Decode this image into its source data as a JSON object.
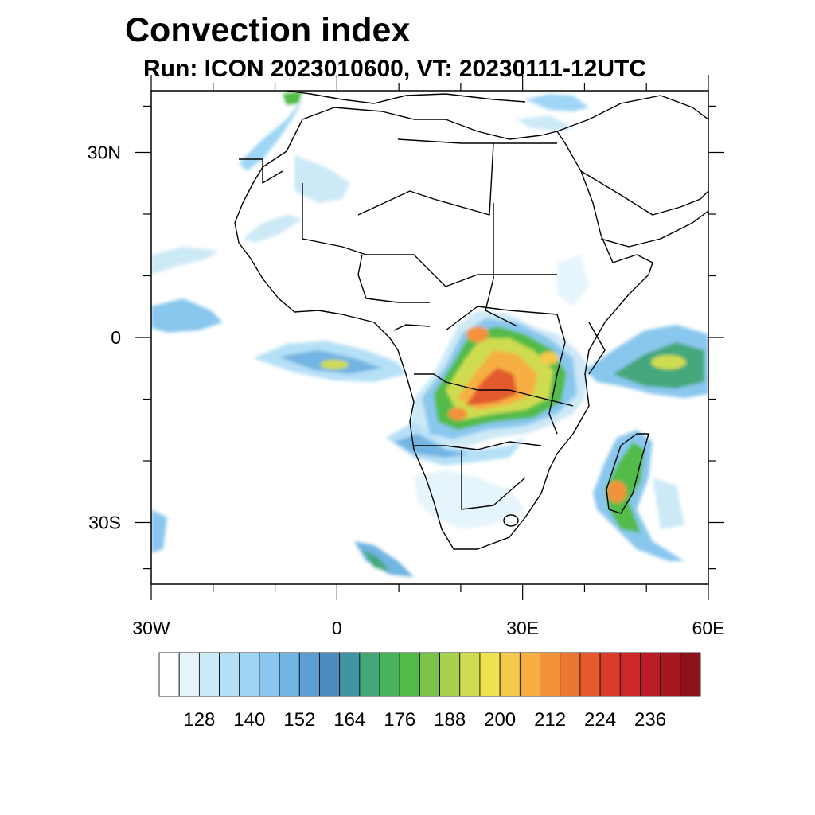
{
  "header": {
    "title": "Convection index",
    "subtitle": "Run: ICON 2023010600,  VT: 20230111-12UTC"
  },
  "map": {
    "lon_range": [
      -30,
      60
    ],
    "lat_range": [
      -40,
      40
    ],
    "x_ticks": [
      {
        "value": -30,
        "label": "30W"
      },
      {
        "value": 0,
        "label": "0"
      },
      {
        "value": 30,
        "label": "30E"
      },
      {
        "value": 60,
        "label": "60E"
      }
    ],
    "y_ticks": [
      {
        "value": 30,
        "label": "30N"
      },
      {
        "value": 0,
        "label": "0"
      },
      {
        "value": -30,
        "label": "30S"
      }
    ],
    "minor_x": [
      -20,
      -10,
      10,
      20,
      40,
      50
    ],
    "minor_y": [
      20,
      10,
      -10,
      -20
    ],
    "minor_y_extra": [
      37.5,
      -37.5
    ]
  },
  "colorbar": {
    "colors": [
      "#ffffff",
      "#e6f4fb",
      "#cce9f6",
      "#b5e0f7",
      "#9fd6f6",
      "#8ac7ee",
      "#72b4e2",
      "#5b9fd3",
      "#4b8bbe",
      "#3f94a0",
      "#45a77c",
      "#48b35a",
      "#52bb48",
      "#7bc24a",
      "#a9cf4d",
      "#cfdc50",
      "#f0e150",
      "#f6c94a",
      "#f7ae42",
      "#f3923b",
      "#ec7733",
      "#e25a2e",
      "#d83d2b",
      "#cd2728",
      "#bb1b25",
      "#a6171f",
      "#8c121a"
    ],
    "labels": [
      "128",
      "140",
      "152",
      "164",
      "176",
      "188",
      "200",
      "212",
      "224",
      "236"
    ]
  }
}
